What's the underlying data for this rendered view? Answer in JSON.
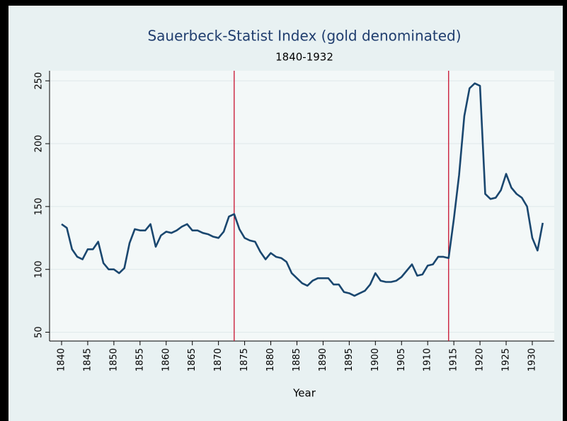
{
  "chart_data": {
    "type": "line",
    "title": "Sauerbeck-Statist Index (gold denominated)",
    "subtitle": "1840-1932",
    "x_label": "Year",
    "x": [
      1840,
      1841,
      1842,
      1843,
      1844,
      1845,
      1846,
      1847,
      1848,
      1849,
      1850,
      1851,
      1852,
      1853,
      1854,
      1855,
      1856,
      1857,
      1858,
      1859,
      1860,
      1861,
      1862,
      1863,
      1864,
      1865,
      1866,
      1867,
      1868,
      1869,
      1870,
      1871,
      1872,
      1873,
      1874,
      1875,
      1876,
      1877,
      1878,
      1879,
      1880,
      1881,
      1882,
      1883,
      1884,
      1885,
      1886,
      1887,
      1888,
      1889,
      1890,
      1891,
      1892,
      1893,
      1894,
      1895,
      1896,
      1897,
      1898,
      1899,
      1900,
      1901,
      1902,
      1903,
      1904,
      1905,
      1906,
      1907,
      1908,
      1909,
      1910,
      1911,
      1912,
      1913,
      1914,
      1915,
      1916,
      1917,
      1918,
      1919,
      1920,
      1921,
      1922,
      1923,
      1924,
      1925,
      1926,
      1927,
      1928,
      1929,
      1930,
      1931,
      1932
    ],
    "series": [
      {
        "color": "#1a476f",
        "values": [
          136,
          133,
          116,
          110,
          108,
          116,
          116,
          122,
          105,
          100,
          100,
          97,
          101,
          121,
          132,
          131,
          131,
          136,
          118,
          127,
          130,
          129,
          131,
          134,
          136,
          131,
          131,
          129,
          128,
          126,
          125,
          130,
          142,
          144,
          132,
          125,
          123,
          122,
          114,
          108,
          113,
          110,
          109,
          106,
          97,
          93,
          89,
          87,
          91,
          93,
          93,
          93,
          88,
          88,
          82,
          81,
          79,
          81,
          83,
          88,
          97,
          91,
          90,
          90,
          91,
          94,
          99,
          104,
          95,
          96,
          103,
          104,
          110,
          110,
          109,
          140,
          175,
          222,
          244,
          248,
          246,
          160,
          156,
          157,
          163,
          176,
          165,
          160,
          157,
          150,
          125,
          115,
          137
        ]
      }
    ],
    "xlines": [
      1873,
      1914
    ],
    "xline_color": "#c8102e",
    "xlim": [
      1837.7,
      1934.2
    ],
    "ylim": [
      43,
      258
    ],
    "xticks": [
      1840,
      1845,
      1850,
      1855,
      1860,
      1865,
      1870,
      1875,
      1880,
      1885,
      1890,
      1895,
      1900,
      1905,
      1910,
      1915,
      1920,
      1925,
      1930
    ],
    "yticks": [
      50,
      100,
      150,
      200,
      250
    ],
    "grid": true
  }
}
